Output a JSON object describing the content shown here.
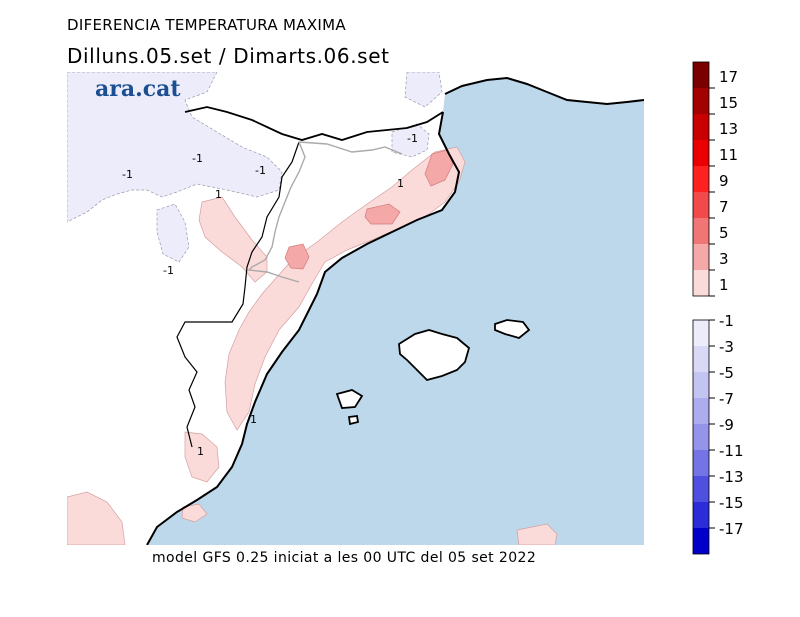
{
  "title": "DIFERENCIA TEMPERATURA MAXIMA",
  "subtitle": "Dilluns.05.set / Dimarts.06.set",
  "footer": "model GFS 0.25 iniciat a les 00 UTC del 05 set 2022",
  "logo": "ara.cat",
  "map_labels": {
    "n1a": "-1",
    "n1b": "-1",
    "n1c": "-1",
    "n1d": "-1",
    "n1e": "-1",
    "p1a": "1",
    "p1b": "1",
    "p1c": "1",
    "p1d": "1"
  },
  "legend": {
    "positive": [
      {
        "label": "17",
        "color": "#7a0000"
      },
      {
        "label": "15",
        "color": "#a30000"
      },
      {
        "label": "13",
        "color": "#c80000"
      },
      {
        "label": "11",
        "color": "#ea0000"
      },
      {
        "label": "9",
        "color": "#ff2020"
      },
      {
        "label": "7",
        "color": "#f24a4a"
      },
      {
        "label": "5",
        "color": "#f07676"
      },
      {
        "label": "3",
        "color": "#f5a8a8"
      },
      {
        "label": "1",
        "color": "#fbdada"
      }
    ],
    "negative": [
      {
        "label": "-1",
        "color": "#ececfa"
      },
      {
        "label": "-3",
        "color": "#d9d9f6"
      },
      {
        "label": "-5",
        "color": "#c4c4f2"
      },
      {
        "label": "-7",
        "color": "#acacee"
      },
      {
        "label": "-9",
        "color": "#9494ea"
      },
      {
        "label": "-11",
        "color": "#7474e6"
      },
      {
        "label": "-13",
        "color": "#5050e0"
      },
      {
        "label": "-15",
        "color": "#2c2cd8"
      },
      {
        "label": "-17",
        "color": "#0000c8"
      }
    ]
  }
}
